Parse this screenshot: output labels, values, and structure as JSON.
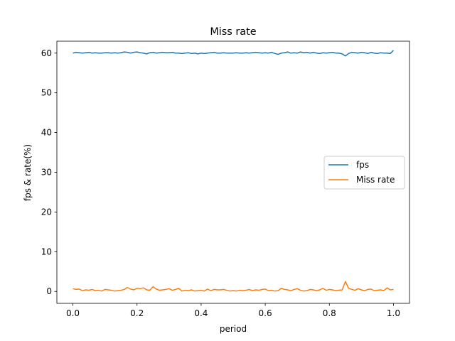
{
  "chart_data": {
    "type": "line",
    "title": "Miss rate",
    "xlabel": "period",
    "ylabel": "fps & rate(%)",
    "xlim": [
      -0.05,
      1.05
    ],
    "ylim": [
      -3.0,
      63.0
    ],
    "xticks": [
      0.0,
      0.2,
      0.4,
      0.6,
      0.8,
      1.0
    ],
    "xtick_labels": [
      "0.0",
      "0.2",
      "0.4",
      "0.6",
      "0.8",
      "1.0"
    ],
    "yticks": [
      0,
      10,
      20,
      30,
      40,
      50,
      60
    ],
    "ytick_labels": [
      "0",
      "10",
      "20",
      "30",
      "40",
      "50",
      "60"
    ],
    "grid": false,
    "legend_position": "center-right",
    "x": [
      0.0,
      0.01,
      0.02,
      0.03,
      0.04,
      0.05,
      0.06,
      0.07,
      0.08,
      0.09,
      0.1,
      0.11,
      0.12,
      0.13,
      0.14,
      0.15,
      0.16,
      0.17,
      0.18,
      0.19,
      0.2,
      0.21,
      0.22,
      0.23,
      0.24,
      0.25,
      0.26,
      0.27,
      0.28,
      0.29,
      0.3,
      0.31,
      0.32,
      0.33,
      0.34,
      0.35,
      0.36,
      0.37,
      0.38,
      0.39,
      0.4,
      0.41,
      0.42,
      0.43,
      0.44,
      0.45,
      0.46,
      0.47,
      0.48,
      0.49,
      0.5,
      0.51,
      0.52,
      0.53,
      0.54,
      0.55,
      0.56,
      0.57,
      0.58,
      0.59,
      0.6,
      0.61,
      0.62,
      0.63,
      0.64,
      0.65,
      0.66,
      0.67,
      0.68,
      0.69,
      0.7,
      0.71,
      0.72,
      0.73,
      0.74,
      0.75,
      0.76,
      0.77,
      0.78,
      0.79,
      0.8,
      0.81,
      0.82,
      0.83,
      0.84,
      0.85,
      0.86,
      0.87,
      0.88,
      0.89,
      0.9,
      0.91,
      0.92,
      0.93,
      0.94,
      0.95,
      0.96,
      0.97,
      0.98,
      0.99,
      1.0
    ],
    "series": [
      {
        "name": "fps",
        "color": "#1f77b4",
        "values": [
          60.0,
          60.2,
          60.1,
          60.0,
          60.1,
          60.2,
          60.0,
          60.1,
          60.0,
          60.0,
          60.1,
          60.1,
          60.0,
          60.1,
          60.0,
          60.1,
          60.3,
          60.2,
          60.0,
          60.2,
          60.3,
          60.1,
          60.0,
          59.8,
          60.1,
          60.2,
          60.0,
          60.1,
          60.2,
          60.1,
          60.1,
          60.2,
          60.0,
          60.0,
          59.9,
          60.0,
          60.1,
          59.9,
          60.0,
          59.8,
          60.0,
          59.9,
          60.0,
          60.1,
          60.2,
          60.0,
          60.0,
          60.1,
          60.0,
          60.0,
          60.0,
          60.1,
          60.0,
          60.0,
          60.1,
          60.0,
          60.1,
          60.2,
          60.1,
          60.0,
          60.1,
          60.0,
          60.2,
          59.9,
          59.7,
          60.0,
          60.1,
          60.3,
          60.0,
          60.1,
          60.0,
          60.3,
          60.1,
          60.2,
          60.0,
          60.2,
          60.0,
          59.9,
          60.1,
          60.0,
          60.1,
          60.2,
          60.0,
          60.0,
          59.8,
          59.3,
          59.9,
          60.2,
          60.1,
          60.0,
          60.2,
          60.1,
          59.9,
          60.2,
          60.0,
          59.9,
          60.1,
          60.0,
          60.0,
          59.9,
          60.7
        ]
      },
      {
        "name": "Miss rate",
        "color": "#ff7f0e",
        "values": [
          0.7,
          0.5,
          0.6,
          0.2,
          0.4,
          0.3,
          0.5,
          0.2,
          0.3,
          0.1,
          0.5,
          0.4,
          0.3,
          0.1,
          0.2,
          0.3,
          0.5,
          1.0,
          0.6,
          0.4,
          0.8,
          0.7,
          0.9,
          0.4,
          0.3,
          1.2,
          0.6,
          0.3,
          0.4,
          0.5,
          0.7,
          0.3,
          0.5,
          0.8,
          0.1,
          0.3,
          0.2,
          0.4,
          0.1,
          0.2,
          0.3,
          0.1,
          0.6,
          0.2,
          0.5,
          0.4,
          0.4,
          0.5,
          0.3,
          0.1,
          0.2,
          0.1,
          0.3,
          0.2,
          0.3,
          0.5,
          0.2,
          0.4,
          0.3,
          0.5,
          0.6,
          0.2,
          0.3,
          0.1,
          0.2,
          0.8,
          0.5,
          0.4,
          0.2,
          0.5,
          0.7,
          0.3,
          0.1,
          0.2,
          0.5,
          0.4,
          0.2,
          0.4,
          0.8,
          0.3,
          0.5,
          0.4,
          0.2,
          0.3,
          0.4,
          2.5,
          0.8,
          0.5,
          0.3,
          0.7,
          0.4,
          0.2,
          0.5,
          0.6,
          0.2,
          0.3,
          0.4,
          0.2,
          0.9,
          0.4,
          0.5
        ]
      }
    ]
  }
}
